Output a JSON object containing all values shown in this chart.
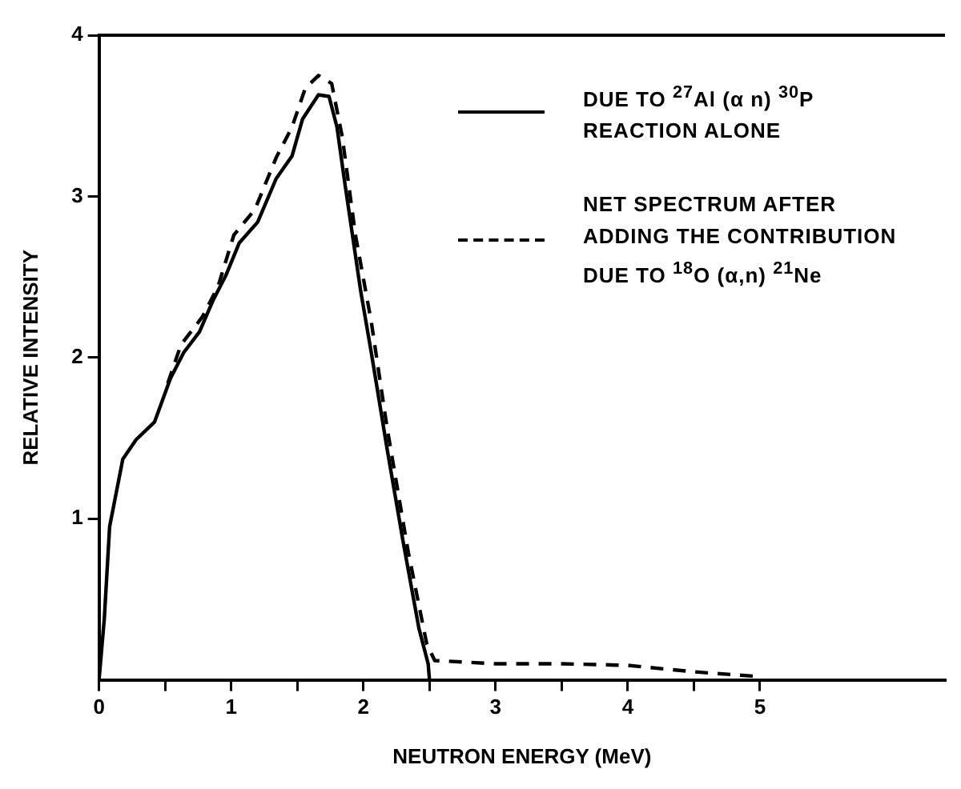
{
  "chart_data": {
    "type": "line",
    "xlabel": "NEUTRON ENERGY (MeV)",
    "ylabel": "RELATIVE INTENSITY",
    "xlim": [
      0,
      6.4
    ],
    "ylim": [
      0,
      4
    ],
    "xticks": [
      0,
      {
        "value": 0.5,
        "label": null
      },
      1,
      {
        "value": 1.5,
        "label": null
      },
      2,
      {
        "value": 2.5,
        "label": null
      },
      3,
      {
        "value": 3.5,
        "label": null
      },
      4,
      {
        "value": 4.5,
        "label": null
      },
      5
    ],
    "yticks": [
      1,
      2,
      3,
      4
    ],
    "grid": false,
    "legend": "top right",
    "marker": "none",
    "series": [
      {
        "name": "DUE TO $^{27}$Al (α n) $^{30}$P REACTION ALONE",
        "color": "#000000",
        "line_style": "solid",
        "x": [
          0,
          0.04,
          0.08,
          0.18,
          0.28,
          0.42,
          0.54,
          0.64,
          0.76,
          0.86,
          0.96,
          1.06,
          1.2,
          1.34,
          1.46,
          1.54,
          1.66,
          1.74,
          1.8,
          1.86,
          1.98,
          2.06,
          2.18,
          2.3,
          2.42,
          2.49,
          2.5
        ],
        "values": [
          0,
          0.38,
          0.95,
          1.37,
          1.49,
          1.6,
          1.87,
          2.03,
          2.16,
          2.35,
          2.51,
          2.71,
          2.84,
          3.11,
          3.25,
          3.48,
          3.63,
          3.62,
          3.43,
          3.08,
          2.41,
          2.03,
          1.43,
          0.86,
          0.32,
          0.1,
          0
        ]
      },
      {
        "name": "NET SPECTRUM AFTER ADDING THE CONTRIBUTION DUE TO $^{18}$O (α,n) $^{21}$Ne",
        "color": "#000000",
        "line_style": "dashed",
        "x": [
          0.52,
          0.62,
          0.78,
          0.9,
          1.02,
          1.18,
          1.34,
          1.46,
          1.56,
          1.66,
          1.76,
          1.84,
          1.94,
          2.06,
          2.18,
          2.34,
          2.48,
          2.54,
          3,
          3.5,
          4,
          4.5,
          5
        ],
        "values": [
          1.84,
          2.08,
          2.25,
          2.44,
          2.76,
          2.92,
          3.24,
          3.43,
          3.67,
          3.75,
          3.7,
          3.37,
          2.76,
          2.22,
          1.56,
          0.79,
          0.22,
          0.12,
          0.1,
          0.1,
          0.09,
          0.05,
          0.02
        ]
      }
    ]
  }
}
